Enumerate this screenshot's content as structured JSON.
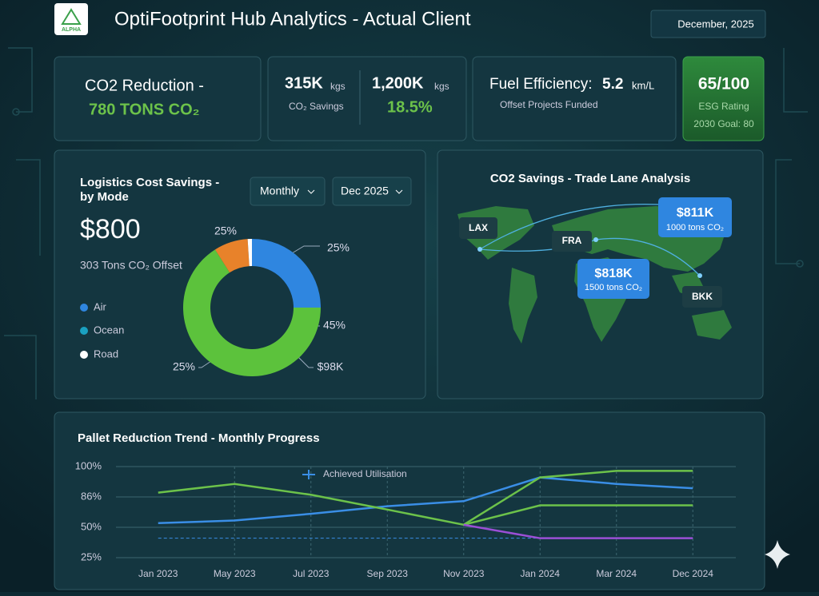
{
  "header": {
    "logo": "ALPHA",
    "title": "OptiFootprint Hub Analytics - Actual Client",
    "date": "December, 2025"
  },
  "kpis": {
    "reduction": {
      "label": "CO2 Reduction -",
      "value": "780 TONS CO₂"
    },
    "savings": {
      "left_value": "315K",
      "left_unit": "kgs",
      "left_label": "CO₂ Savings",
      "right_value": "1,200K",
      "right_unit": "kgs",
      "right_pct": "18.5%"
    },
    "fuel": {
      "label": "Fuel Efficiency:",
      "value": "5.2",
      "unit": "km/L",
      "sub": "Offset Projects Funded"
    },
    "esg": {
      "value": "65/100",
      "label": "ESG Rating",
      "goal": "2030 Goal: 80"
    }
  },
  "cost_panel": {
    "title_line1": "Logistics Cost Savings -",
    "title_line2": "by Mode",
    "period": "Monthly",
    "month": "Dec 2025",
    "amount": "$800",
    "offset": "303 Tons CO₂ Offset",
    "legend": [
      "Air",
      "Ocean",
      "Road"
    ],
    "chart_data": {
      "type": "donut",
      "values": [
        25,
        66,
        8,
        1
      ],
      "colors": [
        "#2f86e0",
        "#5cc23c",
        "#e8822a",
        "#ffffff"
      ],
      "annotations": [
        "25%",
        "25%",
        "45%",
        "$98K",
        "25%"
      ]
    }
  },
  "map_panel": {
    "title": "CO2 Savings - Trade Lane Analysis",
    "nodes": [
      "LAX",
      "FRA",
      "BKK"
    ],
    "callouts": [
      {
        "value": "$811K",
        "sub": "1000 tons CO₂"
      },
      {
        "value": "$818K",
        "sub": "1500 tons CO₂"
      }
    ]
  },
  "trend_panel": {
    "chart_data": {
      "type": "line",
      "title": "Pallet Reduction Trend - Monthly Progress",
      "categories": [
        "Jan 2023",
        "May 2023",
        "Jul 2023",
        "Sep 2023",
        "Nov 2023",
        "Jan 2024",
        "Mar 2024",
        "Dec 2024"
      ],
      "series": [
        {
          "name": "Achieved Utilisation",
          "color": "#3a8ee6",
          "values": [
            55,
            58,
            66,
            75,
            81,
            95,
            92,
            90
          ]
        },
        {
          "color": "#6cc24a",
          "values": [
            88,
            92,
            87,
            71,
            53,
            95,
            98,
            98
          ]
        },
        {
          "color": "#6cc24a",
          "values": [
            null,
            null,
            null,
            null,
            53,
            76,
            76,
            76
          ]
        },
        {
          "color": "#9b4fd6",
          "values": [
            null,
            null,
            null,
            null,
            53,
            41,
            41,
            41
          ]
        }
      ],
      "reference": 41,
      "ylim": [
        25,
        100
      ],
      "yticks": [
        {
          "value": 25,
          "label": "25%"
        },
        {
          "value": 50,
          "label": "50%"
        },
        {
          "value": 86,
          "label": "86%"
        },
        {
          "value": 100,
          "label": "100%"
        }
      ]
    }
  }
}
